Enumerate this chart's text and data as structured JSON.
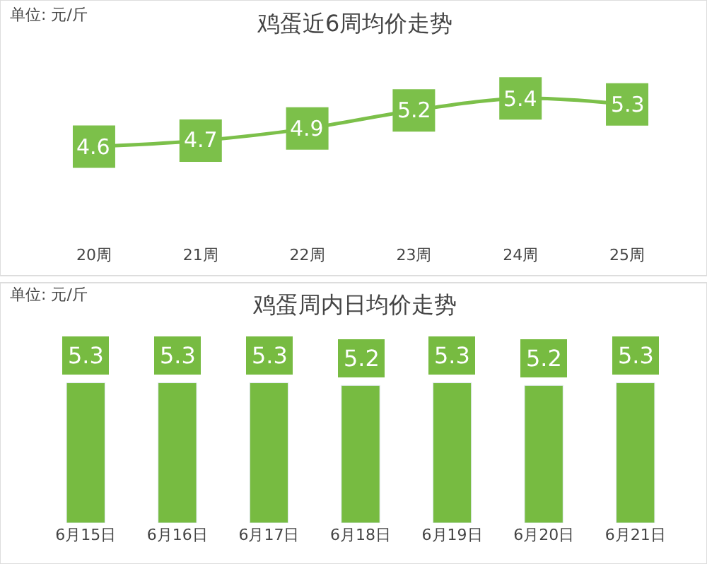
{
  "chart_data": [
    {
      "type": "line",
      "title": "鸡蛋近6周均价走势",
      "annotations": [
        "单位: 元/斤"
      ],
      "categories": [
        "20周",
        "21周",
        "22周",
        "23周",
        "24周",
        "25周"
      ],
      "values": [
        4.6,
        4.7,
        4.9,
        5.2,
        5.4,
        5.3
      ],
      "color": "#7cc04a",
      "data_labels": true,
      "grid": false,
      "tick_labels": "x",
      "marker": "square",
      "line_style": "solid"
    },
    {
      "type": "bar",
      "title": "鸡蛋周内日均价走势",
      "annotations": [
        "单位: 元/斤"
      ],
      "categories": [
        "6月15日",
        "6月16日",
        "6月17日",
        "6月18日",
        "6月19日",
        "6月20日",
        "6月21日"
      ],
      "values": [
        5.3,
        5.3,
        5.3,
        5.2,
        5.3,
        5.2,
        5.3
      ],
      "color": "#77bb41",
      "data_labels": true,
      "tick_labels": "x",
      "grid": false
    }
  ]
}
